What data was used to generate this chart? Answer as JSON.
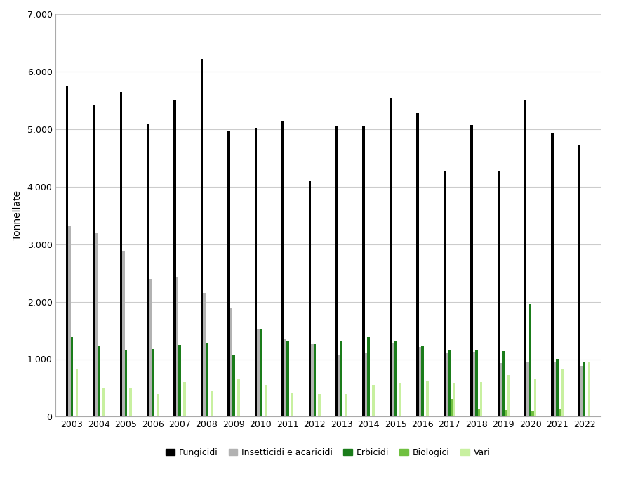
{
  "years": [
    2003,
    2004,
    2005,
    2006,
    2007,
    2008,
    2009,
    2010,
    2011,
    2012,
    2013,
    2014,
    2015,
    2016,
    2017,
    2018,
    2019,
    2020,
    2021,
    2022
  ],
  "Fungicidi": [
    5750,
    5430,
    5650,
    5100,
    5500,
    6220,
    4980,
    5030,
    5150,
    4100,
    5050,
    5050,
    5540,
    5280,
    4280,
    5080,
    4280,
    5500,
    4940,
    4720
  ],
  "Insetticidi e acaricidi": [
    3310,
    3190,
    2880,
    2400,
    2430,
    2160,
    1880,
    1530,
    1350,
    1260,
    1070,
    1100,
    1290,
    1210,
    1120,
    1130,
    930,
    950,
    960,
    880
  ],
  "Erbicidi": [
    1390,
    1220,
    1160,
    1180,
    1250,
    1290,
    1080,
    1530,
    1310,
    1260,
    1320,
    1380,
    1310,
    1220,
    1150,
    1160,
    1140,
    1960,
    1010,
    960
  ],
  "Biologici": [
    0,
    0,
    0,
    0,
    0,
    0,
    0,
    0,
    0,
    0,
    0,
    0,
    0,
    0,
    310,
    130,
    110,
    100,
    130,
    0
  ],
  "Vari": [
    820,
    490,
    490,
    400,
    600,
    450,
    670,
    560,
    410,
    390,
    390,
    550,
    590,
    620,
    590,
    600,
    730,
    650,
    820,
    950
  ],
  "categories": [
    "Fungicidi",
    "Insetticidi e acaricidi",
    "Erbicidi",
    "Biologici",
    "Vari"
  ],
  "colors": {
    "Fungicidi": "#000000",
    "Insetticidi e acaricidi": "#b2b2b2",
    "Erbicidi": "#1a7c1a",
    "Biologici": "#70c040",
    "Vari": "#c8f0a0"
  },
  "ylabel": "Tonnellate",
  "ylim": [
    0,
    7000
  ],
  "yticks": [
    0,
    1000,
    2000,
    3000,
    4000,
    5000,
    6000,
    7000
  ],
  "ytick_labels": [
    "0",
    "1.000",
    "2.000",
    "3.000",
    "4.000",
    "5.000",
    "6.000",
    "7.000"
  ],
  "background_color": "#ffffff",
  "grid_color": "#cccccc"
}
